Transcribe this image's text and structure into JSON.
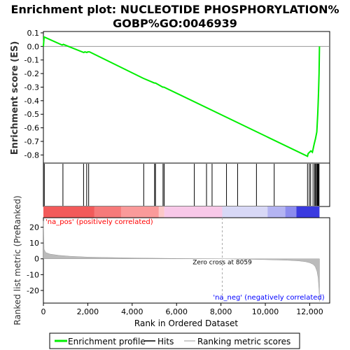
{
  "chart_data": {
    "type": "line",
    "title_line1": "Enrichment plot: NUCLEOTIDE PHOSPHORYLATION%",
    "title_line2": "GOBP%GO:0046939",
    "top_panel": {
      "ylabel": "Enrichment score (ES)",
      "ylim": [
        -0.86,
        0.11
      ],
      "yticks": [
        0.1,
        0.0,
        -0.1,
        -0.2,
        -0.3,
        -0.4,
        -0.5,
        -0.6,
        -0.7,
        -0.8
      ],
      "ytick_labels": [
        "0.1",
        "0.0",
        "-0.1",
        "-0.2",
        "-0.3",
        "-0.4",
        "-0.5",
        "-0.6",
        "-0.7",
        "-0.8"
      ],
      "series": [
        {
          "name": "Enrichment profile",
          "color": "#00ee00",
          "x": [
            0,
            30,
            850,
            900,
            1820,
            1870,
            1960,
            2000,
            2080,
            4500,
            5000,
            5050,
            5380,
            5430,
            11900,
            11930,
            12050,
            12120,
            12200,
            12260,
            12320,
            12340,
            12360,
            12380,
            12400,
            12420,
            12440
          ],
          "y": [
            0.0,
            0.07,
            0.01,
            0.015,
            -0.045,
            -0.04,
            -0.045,
            -0.04,
            -0.04,
            -0.235,
            -0.27,
            -0.27,
            -0.3,
            -0.3,
            -0.81,
            -0.79,
            -0.77,
            -0.78,
            -0.72,
            -0.68,
            -0.63,
            -0.57,
            -0.5,
            -0.42,
            -0.33,
            -0.2,
            0.0
          ]
        }
      ]
    },
    "hits": {
      "color": "#000000",
      "positions": [
        40,
        880,
        1810,
        1950,
        2040,
        4520,
        5010,
        5050,
        5390,
        5440,
        6800,
        7350,
        7600,
        8250,
        8750,
        9600,
        10400,
        11900,
        11980,
        12040,
        12150,
        12220,
        12260,
        12300,
        12340,
        12360,
        12380,
        12400,
        12420
      ]
    },
    "heatmap": {
      "segments": [
        {
          "from": 0,
          "to": 2300,
          "color": "#f25a5a"
        },
        {
          "from": 2300,
          "to": 3500,
          "color": "#f67a7a"
        },
        {
          "from": 3500,
          "to": 5200,
          "color": "#fa9a9a"
        },
        {
          "from": 5200,
          "to": 5450,
          "color": "#fcc8c8"
        },
        {
          "from": 5450,
          "to": 8059,
          "color": "#f8c8e8"
        },
        {
          "from": 8059,
          "to": 10100,
          "color": "#d8d8f6"
        },
        {
          "from": 10100,
          "to": 10900,
          "color": "#b4b4f2"
        },
        {
          "from": 10900,
          "to": 11400,
          "color": "#8c8cee"
        },
        {
          "from": 11400,
          "to": 12440,
          "color": "#3a3ae0"
        }
      ]
    },
    "bottom_panel": {
      "ylabel": "Ranked list metric (PreRanked)",
      "xlabel": "Rank in Ordered Dataset",
      "xlim": [
        0,
        12900
      ],
      "ylim": [
        -28,
        26
      ],
      "yticks": [
        20,
        10,
        0,
        -10,
        -20
      ],
      "ytick_labels": [
        "20",
        "10",
        "0",
        "-10",
        "-20"
      ],
      "xticks": [
        0,
        2000,
        4000,
        6000,
        8000,
        10000,
        12000
      ],
      "xtick_labels": [
        "0",
        "2,000",
        "4,000",
        "6,000",
        "8,000",
        "10,000",
        "12,000"
      ],
      "metric_curve": {
        "x": [
          0,
          30,
          100,
          300,
          700,
          1200,
          2000,
          3000,
          4000,
          5000,
          6000,
          7000,
          8059,
          9000,
          10000,
          11000,
          11500,
          11800,
          12000,
          12150,
          12250,
          12330,
          12380,
          12420,
          12440
        ],
        "y": [
          24,
          6,
          4,
          3,
          2.2,
          1.6,
          1.1,
          0.8,
          0.55,
          0.35,
          0.2,
          0.1,
          0,
          -0.2,
          -0.5,
          -0.9,
          -1.3,
          -1.8,
          -2.5,
          -3.5,
          -5,
          -8,
          -12,
          -20,
          -27
        ]
      },
      "zero_cross": 8059,
      "zero_cross_label": "Zero cross at 8059",
      "pos_label": "'na_pos' (positively correlated)",
      "neg_label": "'na_neg' (negatively correlated)",
      "pos_color": "#ff0000",
      "neg_color": "#0000ff"
    },
    "legend": {
      "placement": "bottom",
      "items": [
        {
          "label": "Enrichment profile",
          "color": "#00ee00"
        },
        {
          "label": "Hits",
          "color": "#000000"
        },
        {
          "label": "Ranking metric scores",
          "color": "#bbbbbb"
        }
      ]
    }
  }
}
